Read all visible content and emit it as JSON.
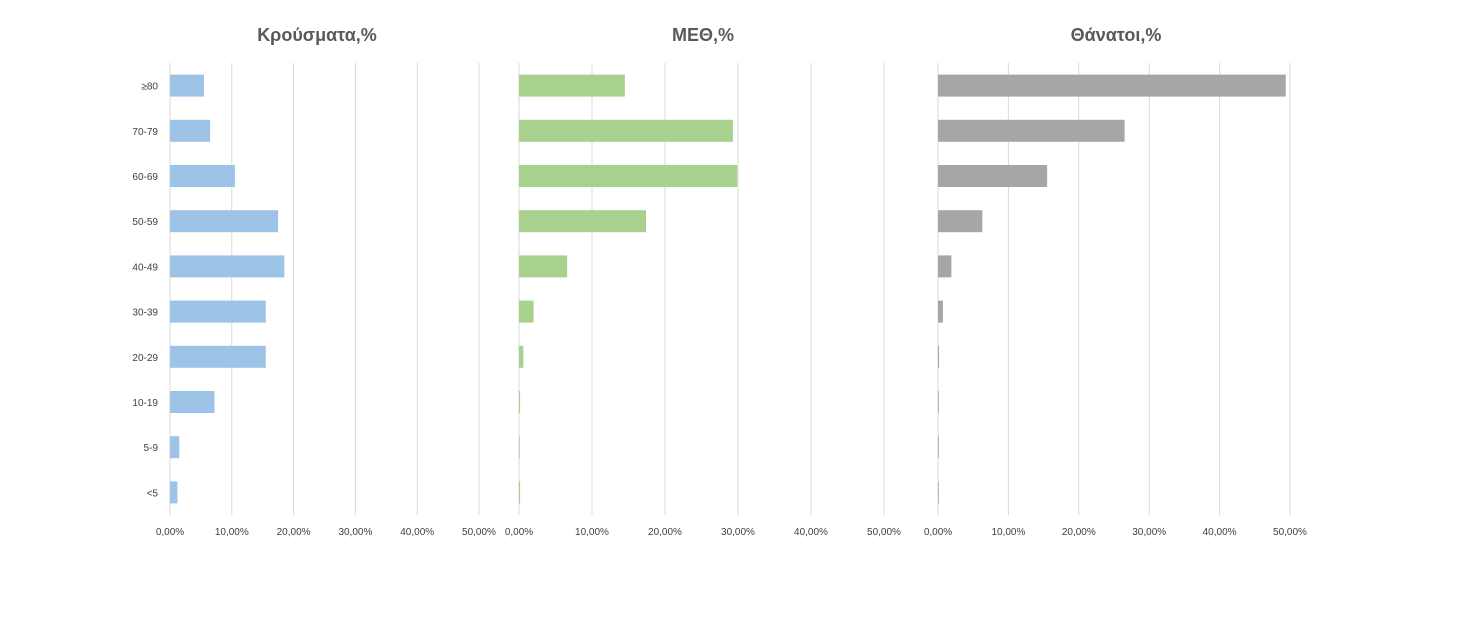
{
  "chart_data": [
    {
      "type": "bar",
      "orientation": "horizontal",
      "title": "Κρούσματα,%",
      "categories": [
        "≥80",
        "70-79",
        "60-69",
        "50-59",
        "40-49",
        "30-39",
        "20-29",
        "10-19",
        "5-9",
        "<5"
      ],
      "values": [
        5.5,
        6.5,
        10.5,
        17.5,
        18.5,
        15.5,
        15.5,
        7.2,
        1.5,
        1.2
      ],
      "xlim": [
        0,
        50
      ],
      "x_ticks": [
        "0,00%",
        "10,00%",
        "20,00%",
        "30,00%",
        "40,00%",
        "50,00%"
      ],
      "grid": true,
      "color": "#9dc3e6"
    },
    {
      "type": "bar",
      "orientation": "horizontal",
      "title": "ΜΕΘ,%",
      "categories": [
        "≥80",
        "70-79",
        "60-69",
        "50-59",
        "40-49",
        "30-39",
        "20-29",
        "10-19",
        "5-9",
        "<5"
      ],
      "values": [
        14.5,
        29.3,
        29.9,
        17.4,
        6.6,
        2.0,
        0.6,
        0.15,
        0.05,
        0.15
      ],
      "xlim": [
        0,
        50
      ],
      "x_ticks": [
        "0,00%",
        "10,00%",
        "20,00%",
        "30,00%",
        "40,00%",
        "50,00%"
      ],
      "grid": true,
      "color": "#a9d18e"
    },
    {
      "type": "bar",
      "orientation": "horizontal",
      "title": "Θάνατοι,%",
      "categories": [
        "≥80",
        "70-79",
        "60-69",
        "50-59",
        "40-49",
        "30-39",
        "20-29",
        "10-19",
        "5-9",
        "<5"
      ],
      "values": [
        49.4,
        26.5,
        15.5,
        6.3,
        1.9,
        0.7,
        0.15,
        0.05,
        0.0,
        0.05
      ],
      "xlim": [
        0,
        50
      ],
      "x_ticks": [
        "0,00%",
        "10,00%",
        "20,00%",
        "30,00%",
        "40,00%",
        "50,00%"
      ],
      "grid": true,
      "color": "#a6a6a6"
    }
  ]
}
